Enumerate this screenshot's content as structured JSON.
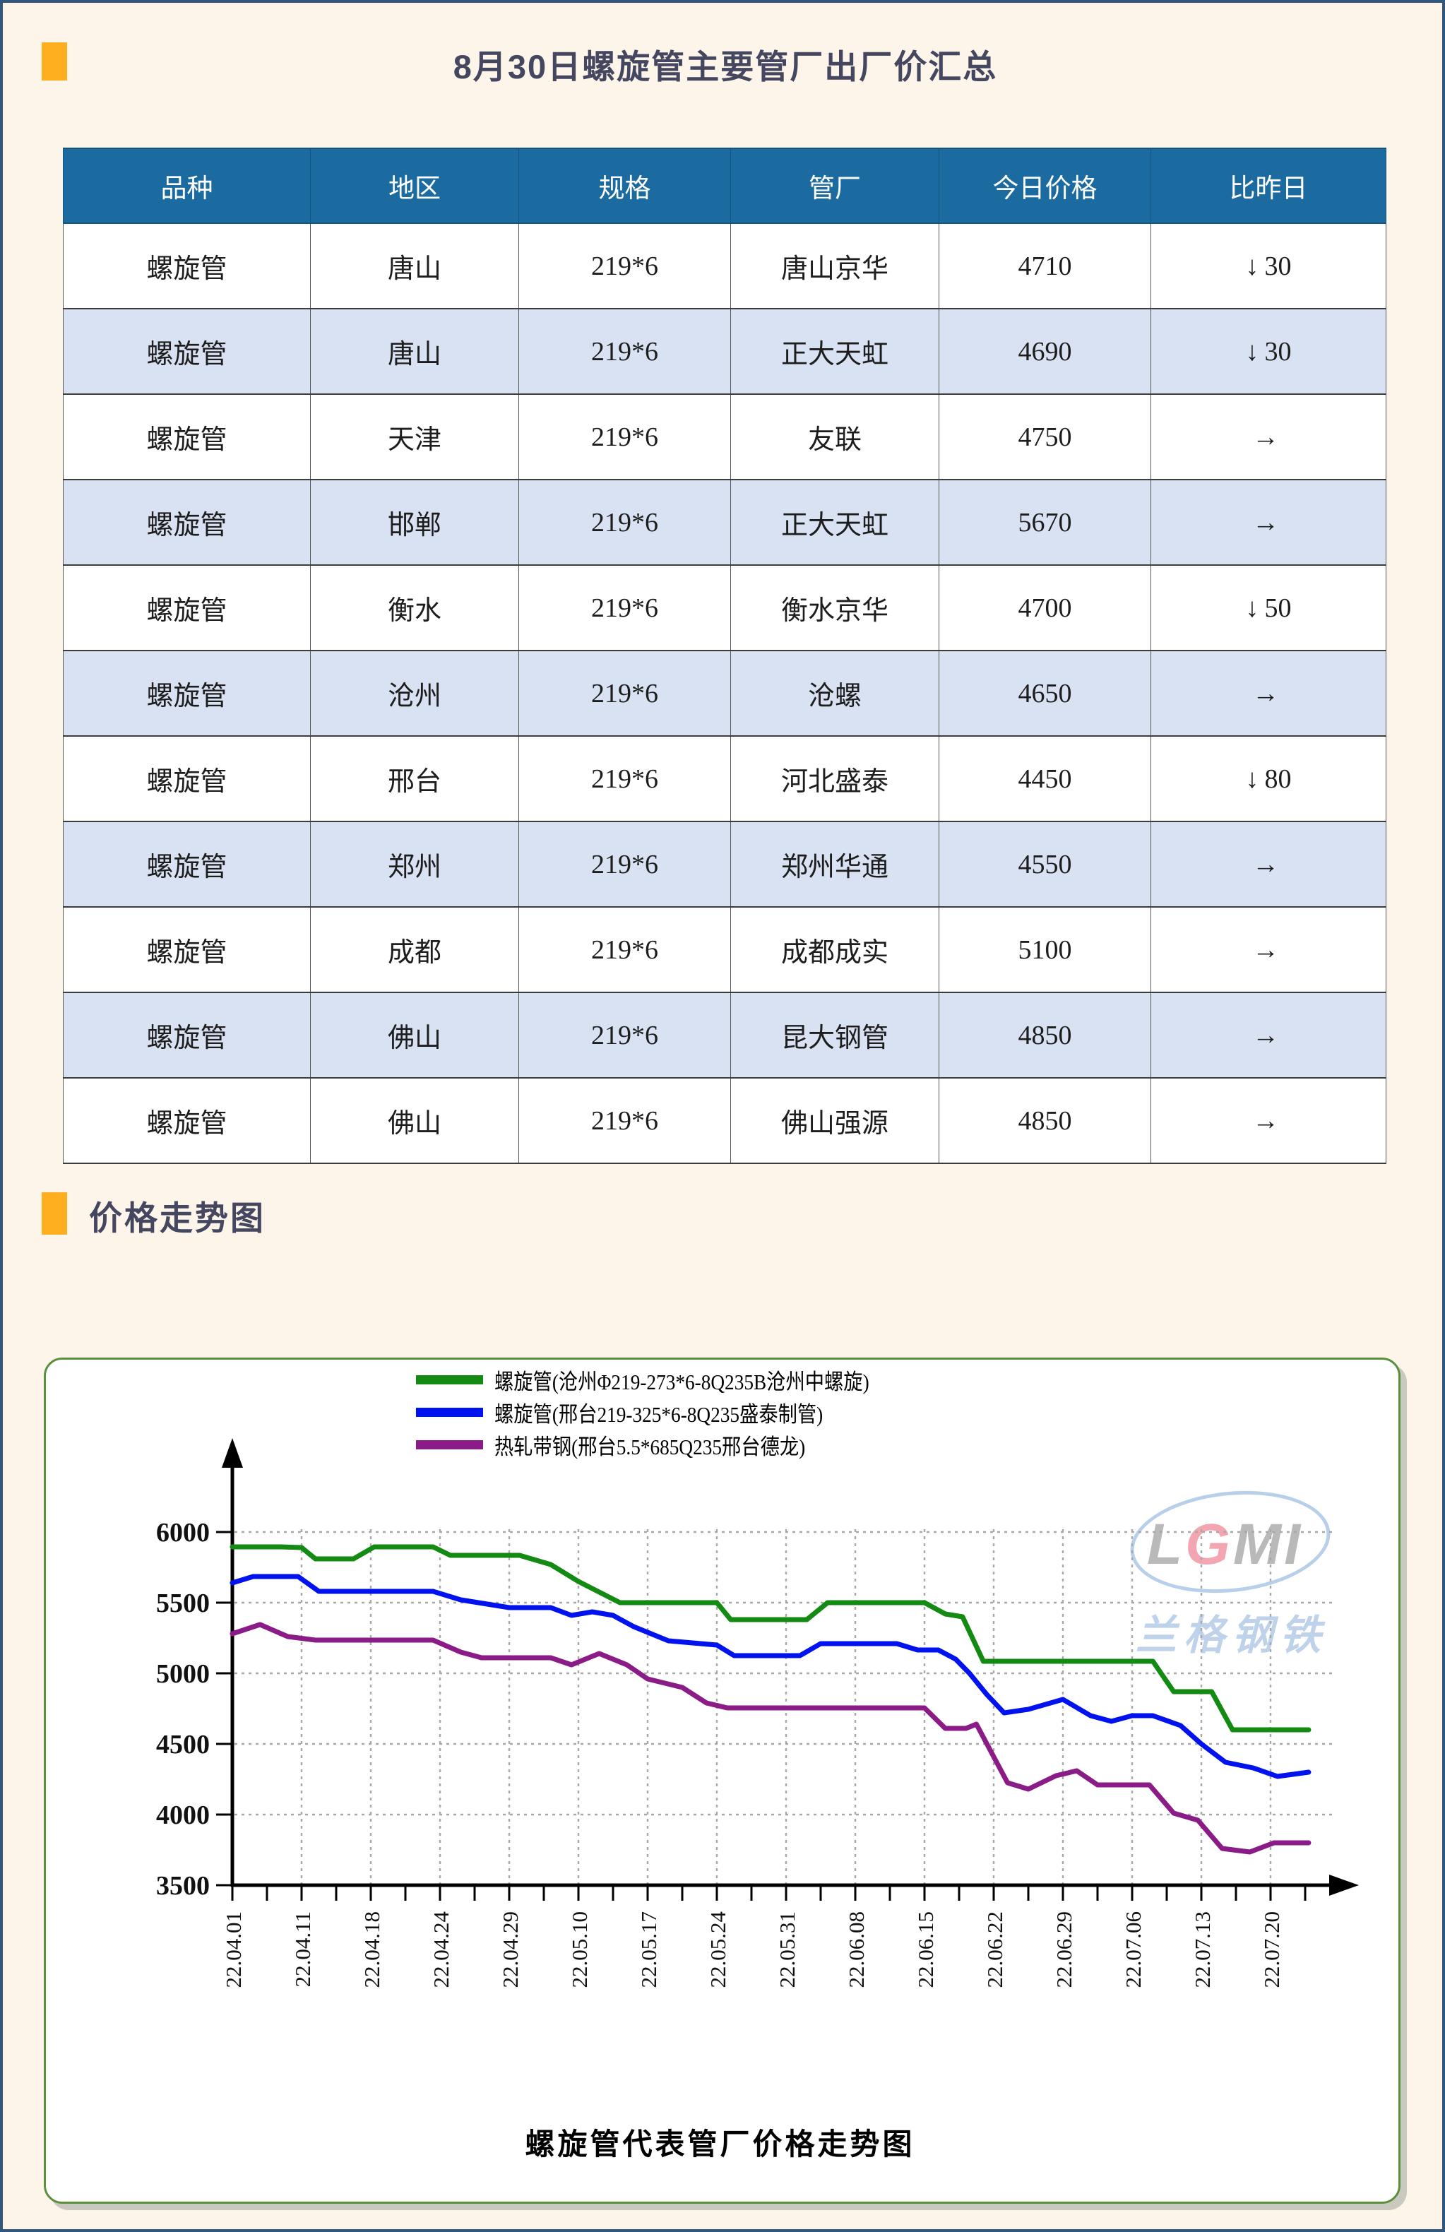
{
  "page": {
    "title": "8月30日螺旋管主要管厂出厂价汇总",
    "section2": "价格走势图"
  },
  "table": {
    "columns": [
      "品种",
      "地区",
      "规格",
      "管厂",
      "今日价格",
      "比昨日"
    ],
    "rows": [
      {
        "variety": "螺旋管",
        "region": "唐山",
        "spec": "219*6",
        "factory": "唐山京华",
        "price": "4710",
        "change_dir": "down",
        "change_symbol": "↓",
        "change_amount": "30"
      },
      {
        "variety": "螺旋管",
        "region": "唐山",
        "spec": "219*6",
        "factory": "正大天虹",
        "price": "4690",
        "change_dir": "down",
        "change_symbol": "↓",
        "change_amount": "30"
      },
      {
        "variety": "螺旋管",
        "region": "天津",
        "spec": "219*6",
        "factory": "友联",
        "price": "4750",
        "change_dir": "flat",
        "change_symbol": "→",
        "change_amount": ""
      },
      {
        "variety": "螺旋管",
        "region": "邯郸",
        "spec": "219*6",
        "factory": "正大天虹",
        "price": "5670",
        "change_dir": "flat",
        "change_symbol": "→",
        "change_amount": ""
      },
      {
        "variety": "螺旋管",
        "region": "衡水",
        "spec": "219*6",
        "factory": "衡水京华",
        "price": "4700",
        "change_dir": "down",
        "change_symbol": "↓",
        "change_amount": "50"
      },
      {
        "variety": "螺旋管",
        "region": "沧州",
        "spec": "219*6",
        "factory": "沧螺",
        "price": "4650",
        "change_dir": "flat",
        "change_symbol": "→",
        "change_amount": ""
      },
      {
        "variety": "螺旋管",
        "region": "邢台",
        "spec": "219*6",
        "factory": "河北盛泰",
        "price": "4450",
        "change_dir": "down",
        "change_symbol": "↓",
        "change_amount": "80"
      },
      {
        "variety": "螺旋管",
        "region": "郑州",
        "spec": "219*6",
        "factory": "郑州华通",
        "price": "4550",
        "change_dir": "flat",
        "change_symbol": "→",
        "change_amount": ""
      },
      {
        "variety": "螺旋管",
        "region": "成都",
        "spec": "219*6",
        "factory": "成都成实",
        "price": "5100",
        "change_dir": "flat",
        "change_symbol": "→",
        "change_amount": ""
      },
      {
        "variety": "螺旋管",
        "region": "佛山",
        "spec": "219*6",
        "factory": "昆大钢管",
        "price": "4850",
        "change_dir": "flat",
        "change_symbol": "→",
        "change_amount": ""
      },
      {
        "variety": "螺旋管",
        "region": "佛山",
        "spec": "219*6",
        "factory": "佛山强源",
        "price": "4850",
        "change_dir": "flat",
        "change_symbol": "→",
        "change_amount": ""
      }
    ],
    "change_colors": {
      "down": "#00ac4e",
      "flat": "#111111"
    }
  },
  "chart_data": {
    "type": "line",
    "title": "螺旋管代表管厂价格走势图",
    "ylim": [
      3500,
      6000
    ],
    "ytick_step": 500,
    "ytick_labels": [
      "6000",
      "5500",
      "5000",
      "4500",
      "4000",
      "3500"
    ],
    "x_tick_labels": [
      "22.04.01",
      "22.04.11",
      "22.04.18",
      "22.04.24",
      "22.04.29",
      "22.05.10",
      "22.05.17",
      "22.05.24",
      "22.05.31",
      "22.06.08",
      "22.06.15",
      "22.06.22",
      "22.06.29",
      "22.07.06",
      "22.07.13",
      "22.07.20"
    ],
    "grid": "dashed",
    "legend_position": "top-center",
    "series": [
      {
        "name": "螺旋管(沧州Φ219-273*6-8Q235B沧州中螺旋)",
        "color": "#138a12",
        "points": [
          [
            0,
            5895
          ],
          [
            0.7,
            5895
          ],
          [
            1.0,
            5890
          ],
          [
            1.2,
            5810
          ],
          [
            1.75,
            5810
          ],
          [
            2.05,
            5895
          ],
          [
            2.9,
            5895
          ],
          [
            3.15,
            5835
          ],
          [
            4.15,
            5835
          ],
          [
            4.6,
            5770
          ],
          [
            5.0,
            5650
          ],
          [
            5.6,
            5500
          ],
          [
            7.0,
            5500
          ],
          [
            7.2,
            5380
          ],
          [
            8.3,
            5380
          ],
          [
            8.6,
            5500
          ],
          [
            10.0,
            5500
          ],
          [
            10.3,
            5420
          ],
          [
            10.55,
            5400
          ],
          [
            10.85,
            5085
          ],
          [
            13.3,
            5085
          ],
          [
            13.6,
            4870
          ],
          [
            14.15,
            4870
          ],
          [
            14.45,
            4600
          ],
          [
            15.55,
            4600
          ]
        ]
      },
      {
        "name": "螺旋管(邢台219-325*6-8Q235盛泰制管)",
        "color": "#0013ee",
        "points": [
          [
            0,
            5640
          ],
          [
            0.3,
            5685
          ],
          [
            0.95,
            5685
          ],
          [
            1.25,
            5580
          ],
          [
            2.9,
            5580
          ],
          [
            3.3,
            5520
          ],
          [
            4.0,
            5465
          ],
          [
            4.6,
            5465
          ],
          [
            4.9,
            5410
          ],
          [
            5.2,
            5435
          ],
          [
            5.5,
            5410
          ],
          [
            5.8,
            5330
          ],
          [
            6.3,
            5230
          ],
          [
            7.0,
            5200
          ],
          [
            7.25,
            5125
          ],
          [
            8.2,
            5125
          ],
          [
            8.5,
            5210
          ],
          [
            9.6,
            5210
          ],
          [
            9.9,
            5165
          ],
          [
            10.2,
            5165
          ],
          [
            10.45,
            5100
          ],
          [
            10.65,
            5000
          ],
          [
            10.9,
            4850
          ],
          [
            11.15,
            4720
          ],
          [
            11.5,
            4745
          ],
          [
            12.0,
            4815
          ],
          [
            12.4,
            4700
          ],
          [
            12.7,
            4660
          ],
          [
            13.0,
            4700
          ],
          [
            13.3,
            4700
          ],
          [
            13.7,
            4630
          ],
          [
            14.0,
            4500
          ],
          [
            14.35,
            4370
          ],
          [
            14.75,
            4330
          ],
          [
            15.1,
            4270
          ],
          [
            15.55,
            4300
          ]
        ]
      },
      {
        "name": "热轧带钢(邢台5.5*685Q235邢台德龙)",
        "color": "#8a1b87",
        "points": [
          [
            0,
            5280
          ],
          [
            0.4,
            5345
          ],
          [
            0.8,
            5260
          ],
          [
            1.2,
            5235
          ],
          [
            2.9,
            5235
          ],
          [
            3.3,
            5150
          ],
          [
            3.6,
            5110
          ],
          [
            4.6,
            5110
          ],
          [
            4.9,
            5060
          ],
          [
            5.3,
            5140
          ],
          [
            5.7,
            5060
          ],
          [
            6.0,
            4960
          ],
          [
            6.5,
            4900
          ],
          [
            6.85,
            4790
          ],
          [
            7.15,
            4755
          ],
          [
            10.0,
            4755
          ],
          [
            10.3,
            4610
          ],
          [
            10.6,
            4610
          ],
          [
            10.75,
            4640
          ],
          [
            11.2,
            4225
          ],
          [
            11.5,
            4180
          ],
          [
            11.9,
            4275
          ],
          [
            12.2,
            4310
          ],
          [
            12.5,
            4210
          ],
          [
            13.25,
            4210
          ],
          [
            13.6,
            4010
          ],
          [
            13.95,
            3960
          ],
          [
            14.3,
            3760
          ],
          [
            14.7,
            3735
          ],
          [
            15.05,
            3800
          ],
          [
            15.55,
            3800
          ]
        ]
      }
    ]
  },
  "watermark": {
    "logo_text": "LGMI",
    "cn_text": "兰格钢铁"
  }
}
